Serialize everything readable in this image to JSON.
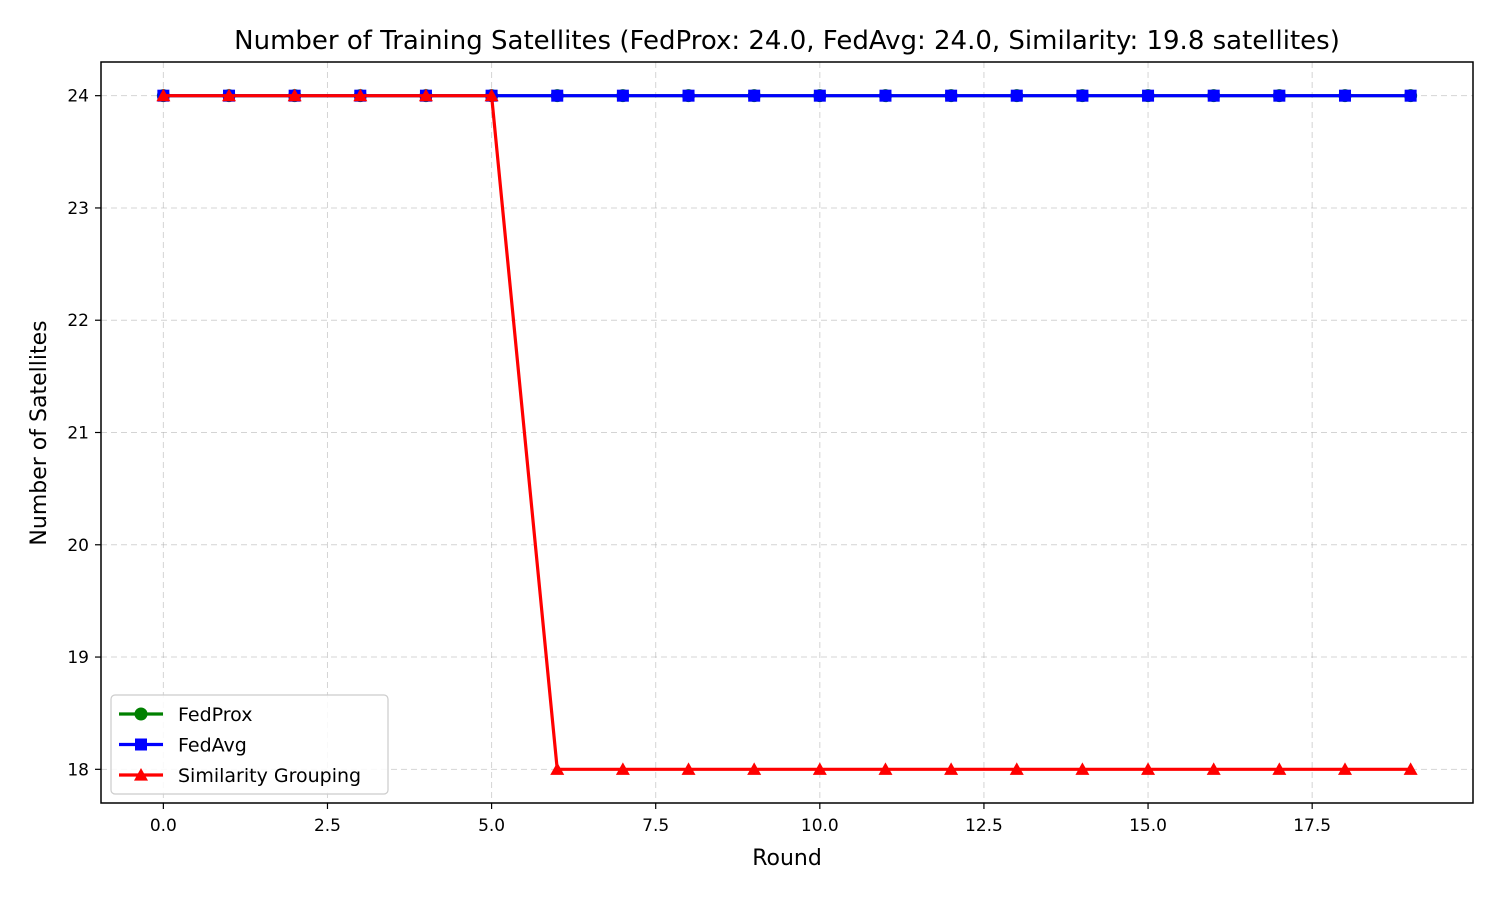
{
  "chart_data": {
    "type": "line",
    "title": "Number of Training Satellites (FedProx: 24.0, FedAvg: 24.0, Similarity: 19.8 satellites)",
    "xlabel": "Round",
    "ylabel": "Number of Satellites",
    "xlim": [
      -0.95,
      19.95
    ],
    "ylim": [
      17.7,
      24.3
    ],
    "xticks": [
      0.0,
      2.5,
      5.0,
      7.5,
      10.0,
      12.5,
      15.0,
      17.5
    ],
    "xtick_labels": [
      "0.0",
      "2.5",
      "5.0",
      "7.5",
      "10.0",
      "12.5",
      "15.0",
      "17.5"
    ],
    "yticks": [
      18,
      19,
      20,
      21,
      22,
      23,
      24
    ],
    "ytick_labels": [
      "18",
      "19",
      "20",
      "21",
      "22",
      "23",
      "24"
    ],
    "grid": true,
    "legend_position": "lower-left",
    "x": [
      0,
      1,
      2,
      3,
      4,
      5,
      6,
      7,
      8,
      9,
      10,
      11,
      12,
      13,
      14,
      15,
      16,
      17,
      18,
      19
    ],
    "series": [
      {
        "name": "FedProx",
        "color": "#008000",
        "marker": "circle",
        "values": [
          24,
          24,
          24,
          24,
          24,
          24,
          24,
          24,
          24,
          24,
          24,
          24,
          24,
          24,
          24,
          24,
          24,
          24,
          24,
          24
        ]
      },
      {
        "name": "FedAvg",
        "color": "#0000ff",
        "marker": "square",
        "values": [
          24,
          24,
          24,
          24,
          24,
          24,
          24,
          24,
          24,
          24,
          24,
          24,
          24,
          24,
          24,
          24,
          24,
          24,
          24,
          24
        ]
      },
      {
        "name": "Similarity Grouping",
        "color": "#ff0000",
        "marker": "triangle",
        "values": [
          24,
          24,
          24,
          24,
          24,
          24,
          18,
          18,
          18,
          18,
          18,
          18,
          18,
          18,
          18,
          18,
          18,
          18,
          18,
          18
        ]
      }
    ]
  }
}
